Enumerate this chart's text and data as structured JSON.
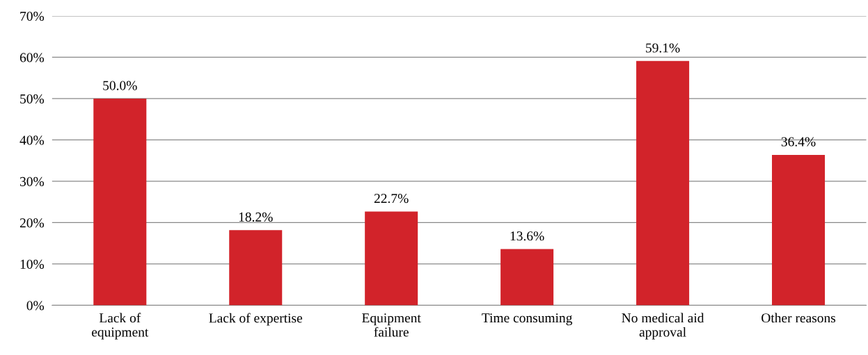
{
  "chart_data": {
    "type": "bar",
    "categories": [
      "Lack of\nequipment",
      "Lack of expertise",
      "Equipment\nfailure",
      "Time consuming",
      "No medical aid\napproval",
      "Other reasons"
    ],
    "values": [
      50.0,
      18.2,
      22.7,
      13.6,
      59.1,
      36.4
    ],
    "value_labels": [
      "50.0%",
      "18.2%",
      "22.7%",
      "13.6%",
      "59.1%",
      "36.4%"
    ],
    "color": "#d2232a",
    "ylim": [
      0,
      70
    ],
    "yticks": [
      {
        "value": 0,
        "label": "0%"
      },
      {
        "value": 10,
        "label": "10%"
      },
      {
        "value": 20,
        "label": "20%"
      },
      {
        "value": 30,
        "label": "30%"
      },
      {
        "value": 40,
        "label": "40%"
      },
      {
        "value": 50,
        "label": "50%"
      },
      {
        "value": 60,
        "label": "60%"
      },
      {
        "value": 70,
        "label": "70%"
      }
    ],
    "grid": "y",
    "legend": false
  }
}
